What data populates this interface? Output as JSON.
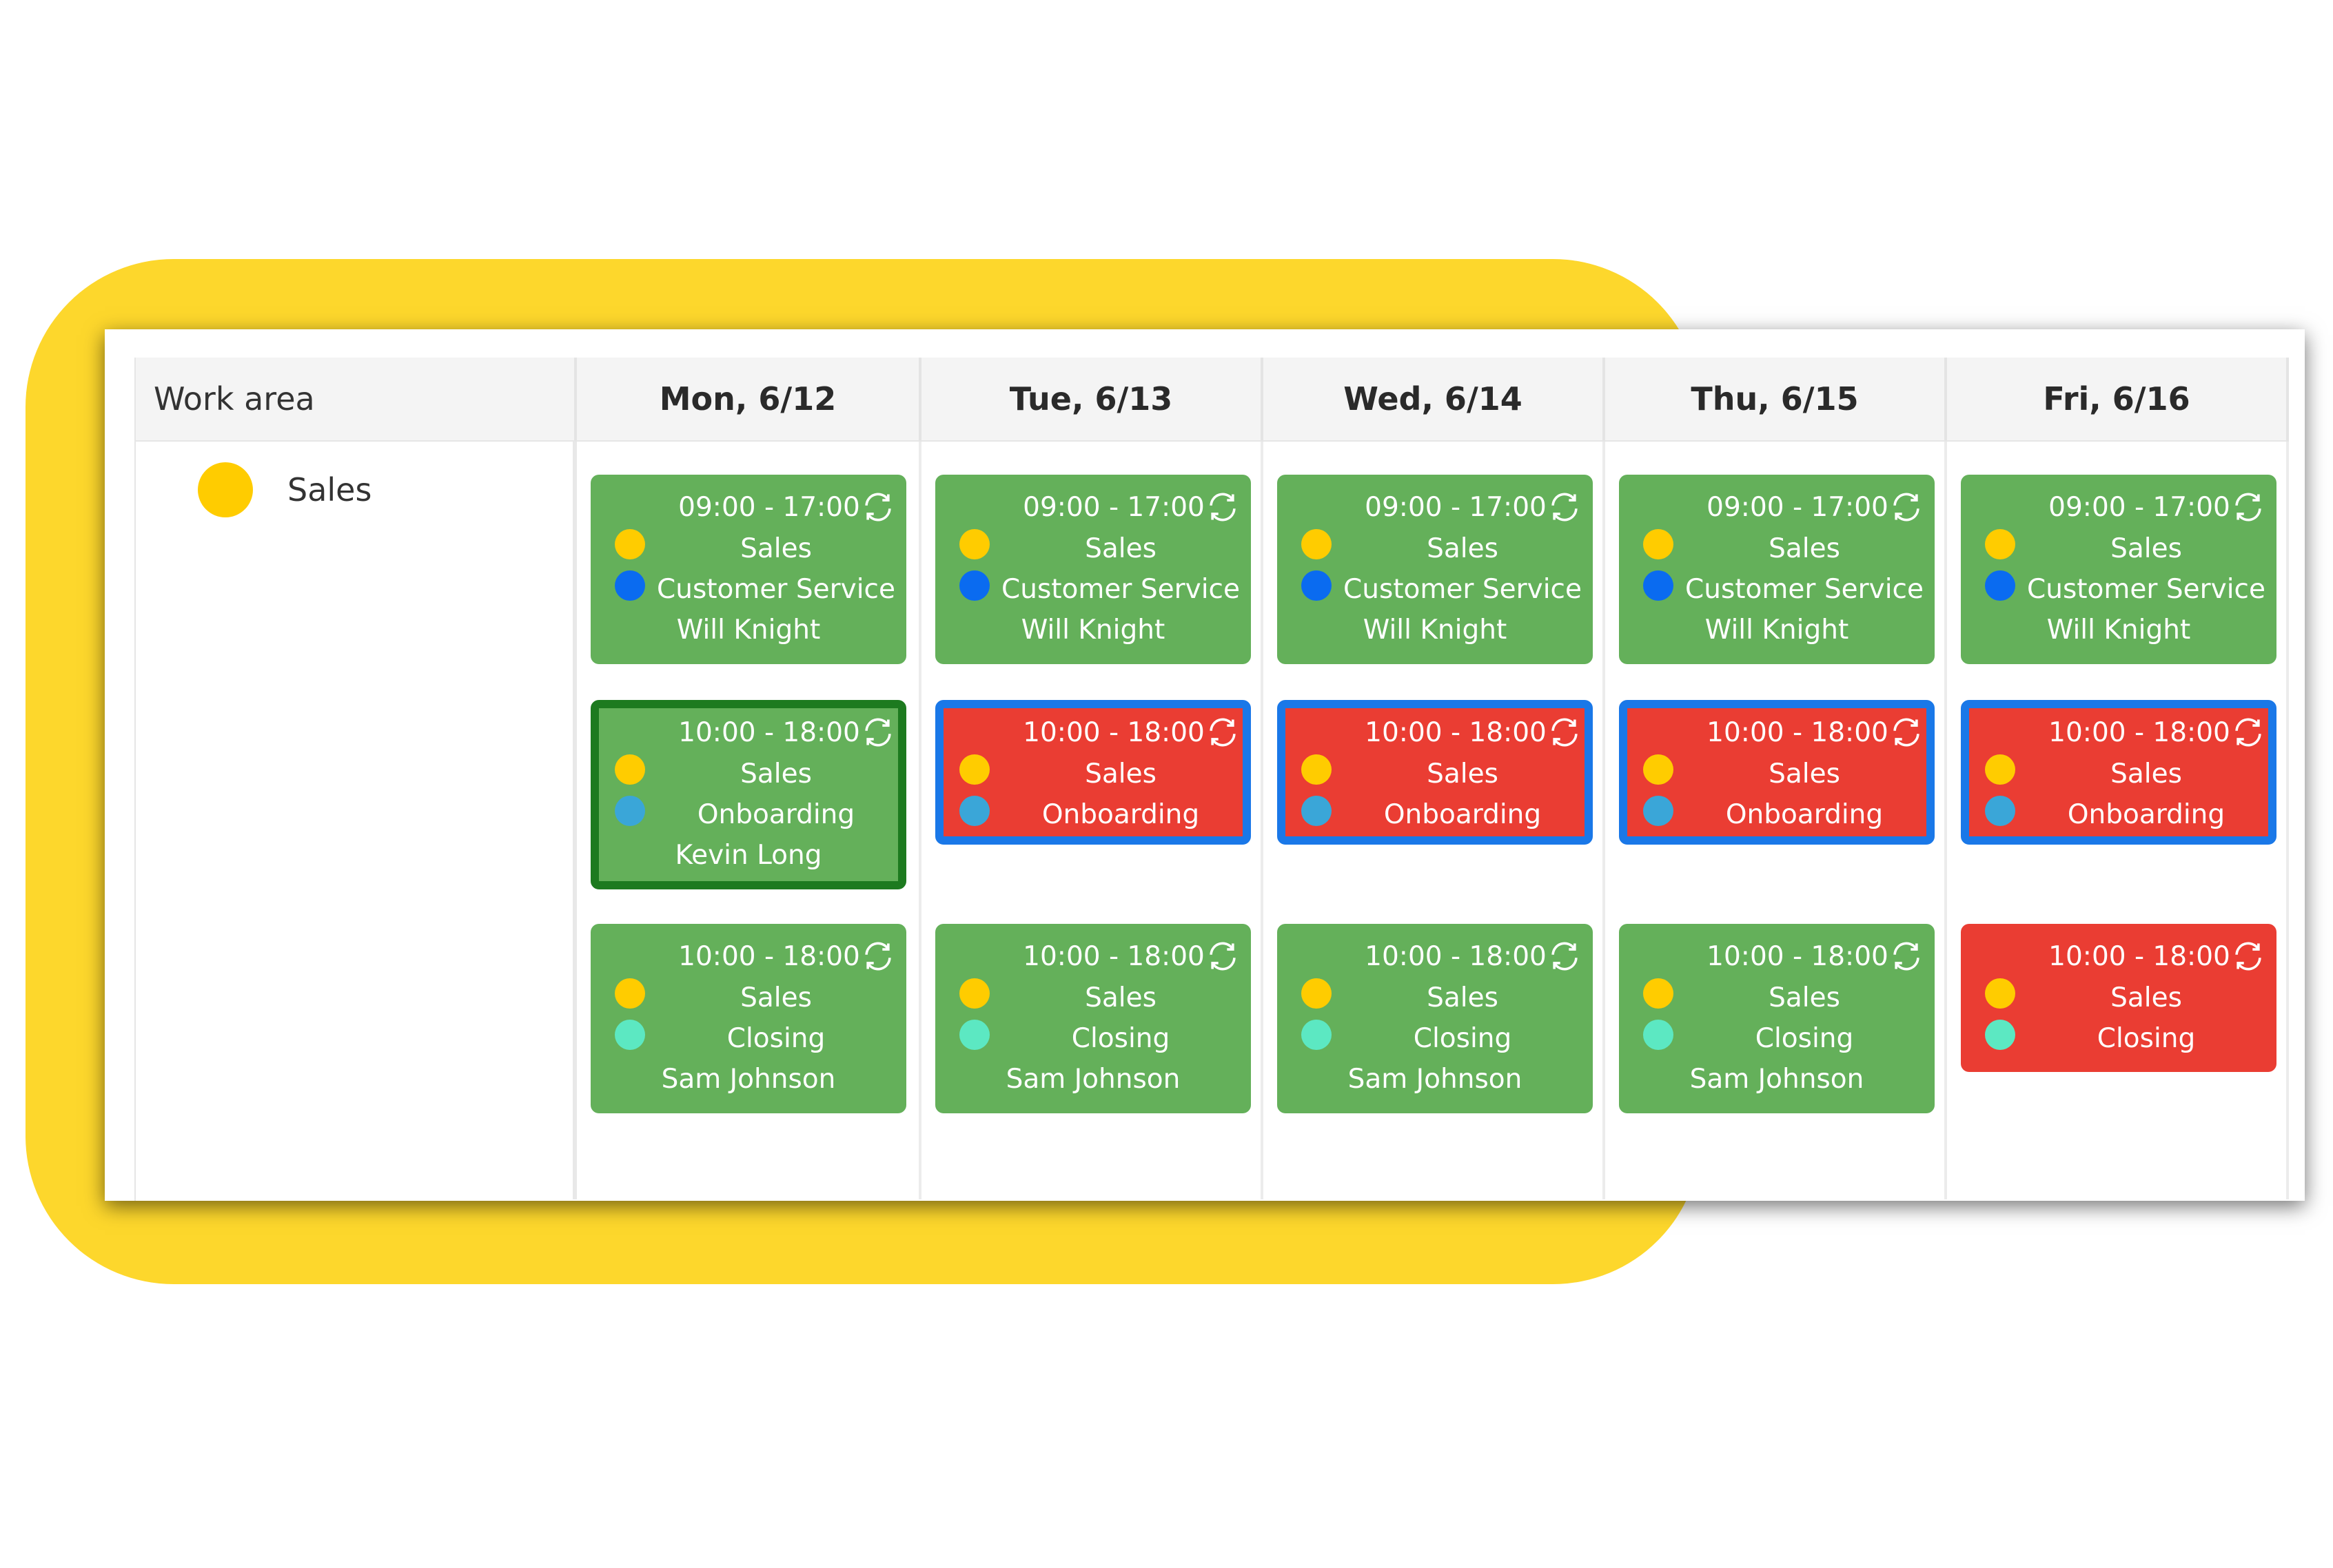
{
  "header": {
    "work_area": "Work area",
    "days": [
      "Mon, 6/12",
      "Tue, 6/13",
      "Wed, 6/14",
      "Thu, 6/15",
      "Fri, 6/16"
    ]
  },
  "work_area": {
    "label": "Sales",
    "color": "#ffcc00"
  },
  "colors": {
    "frame": "#fdd72c",
    "shift_green": "#64b05a",
    "shift_red": "#ea3d33",
    "selected_green_border": "#1d7a1f",
    "selected_blue_border": "#1a78e8",
    "sales_dot": "#ffcc00",
    "customer_service_dot": "#0a6bf0",
    "onboarding_dot": "#3aa6d8",
    "closing_dot": "#5ce8c2"
  },
  "icons": {
    "sync": "sync-icon"
  },
  "shifts": {
    "row1": [
      {
        "time": "09:00 - 17:00",
        "area": "Sales",
        "role": "Customer Service",
        "person": "Will Knight"
      },
      {
        "time": "09:00 - 17:00",
        "area": "Sales",
        "role": "Customer Service",
        "person": "Will Knight"
      },
      {
        "time": "09:00 - 17:00",
        "area": "Sales",
        "role": "Customer Service",
        "person": "Will Knight"
      },
      {
        "time": "09:00 - 17:00",
        "area": "Sales",
        "role": "Customer Service",
        "person": "Will Knight"
      },
      {
        "time": "09:00 - 17:00",
        "area": "Sales",
        "role": "Customer Service",
        "person": "Will Knight"
      }
    ],
    "row2": [
      {
        "time": "10:00 - 18:00",
        "area": "Sales",
        "role": "Onboarding",
        "person": "Kevin Long"
      },
      {
        "time": "10:00 - 18:00",
        "area": "Sales",
        "role": "Onboarding",
        "person": ""
      },
      {
        "time": "10:00 - 18:00",
        "area": "Sales",
        "role": "Onboarding",
        "person": ""
      },
      {
        "time": "10:00 - 18:00",
        "area": "Sales",
        "role": "Onboarding",
        "person": ""
      },
      {
        "time": "10:00 - 18:00",
        "area": "Sales",
        "role": "Onboarding",
        "person": ""
      }
    ],
    "row3": [
      {
        "time": "10:00 - 18:00",
        "area": "Sales",
        "role": "Closing",
        "person": "Sam Johnson"
      },
      {
        "time": "10:00 - 18:00",
        "area": "Sales",
        "role": "Closing",
        "person": "Sam Johnson"
      },
      {
        "time": "10:00 - 18:00",
        "area": "Sales",
        "role": "Closing",
        "person": "Sam Johnson"
      },
      {
        "time": "10:00 - 18:00",
        "area": "Sales",
        "role": "Closing",
        "person": "Sam Johnson"
      },
      {
        "time": "10:00 - 18:00",
        "area": "Sales",
        "role": "Closing",
        "person": ""
      }
    ]
  }
}
